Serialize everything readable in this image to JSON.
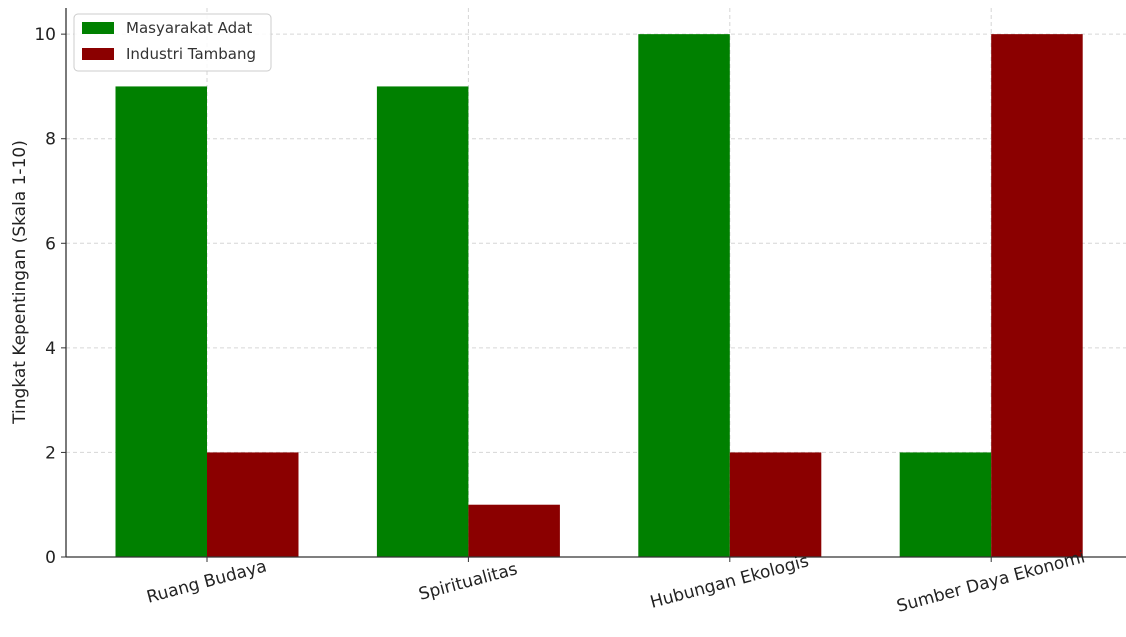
{
  "chart_data": {
    "type": "bar",
    "title": "",
    "xlabel": "",
    "ylabel": "Tingkat Kepentingan (Skala 1-10)",
    "categories": [
      "Ruang Budaya",
      "Spiritualitas",
      "Hubungan Ekologis",
      "Sumber Daya Ekonomi"
    ],
    "series": [
      {
        "name": "Masyarakat Adat",
        "color": "#008000",
        "values": [
          9,
          9,
          10,
          2
        ]
      },
      {
        "name": "Industri Tambang",
        "color": "#8b0000",
        "values": [
          2,
          1,
          2,
          10
        ]
      }
    ],
    "ylim": [
      0,
      10.5
    ],
    "yticks": [
      "0",
      "2",
      "4",
      "6",
      "8",
      "10"
    ],
    "grid": true,
    "legend_position": "top-left",
    "x_tick_rotation_deg": -15
  }
}
